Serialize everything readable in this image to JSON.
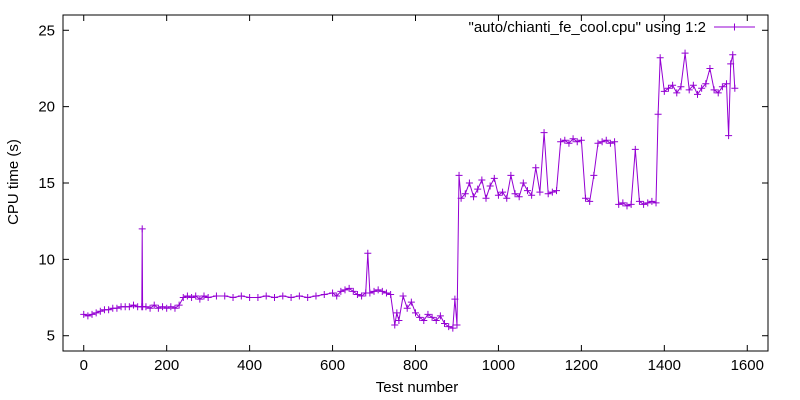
{
  "chart_data": {
    "type": "line",
    "xlabel": "Test number",
    "ylabel": "CPU time (s)",
    "xlim": [
      -50,
      1650
    ],
    "ylim": [
      4,
      26
    ],
    "xticks": [
      0,
      200,
      400,
      600,
      800,
      1000,
      1200,
      1400,
      1600
    ],
    "yticks": [
      5,
      10,
      15,
      20,
      25
    ],
    "grid": false,
    "legend_position": "top-right",
    "marker": "+",
    "series": [
      {
        "name": "\"auto/chianti_fe_cool.cpu\" using 1:2",
        "color": "#9400d3",
        "x": [
          0,
          10,
          20,
          30,
          40,
          50,
          60,
          70,
          80,
          90,
          100,
          110,
          120,
          130,
          140,
          141,
          142,
          150,
          160,
          170,
          180,
          190,
          200,
          210,
          220,
          230,
          240,
          250,
          260,
          270,
          280,
          290,
          300,
          320,
          340,
          360,
          380,
          400,
          420,
          440,
          460,
          480,
          500,
          520,
          540,
          560,
          580,
          600,
          610,
          620,
          630,
          640,
          650,
          660,
          670,
          680,
          685,
          690,
          700,
          710,
          720,
          730,
          740,
          750,
          755,
          760,
          770,
          780,
          790,
          800,
          810,
          820,
          830,
          840,
          850,
          860,
          870,
          880,
          890,
          895,
          900,
          905,
          910,
          920,
          930,
          940,
          950,
          960,
          970,
          980,
          990,
          1000,
          1010,
          1020,
          1030,
          1040,
          1050,
          1060,
          1070,
          1080,
          1090,
          1100,
          1110,
          1120,
          1130,
          1140,
          1150,
          1160,
          1170,
          1180,
          1190,
          1200,
          1210,
          1220,
          1230,
          1240,
          1250,
          1260,
          1270,
          1280,
          1290,
          1300,
          1310,
          1320,
          1330,
          1340,
          1350,
          1360,
          1370,
          1380,
          1385,
          1390,
          1400,
          1410,
          1420,
          1430,
          1440,
          1450,
          1460,
          1470,
          1480,
          1490,
          1500,
          1510,
          1520,
          1530,
          1540,
          1550,
          1555,
          1560,
          1565,
          1570
        ],
        "y": [
          6.4,
          6.3,
          6.4,
          6.5,
          6.6,
          6.7,
          6.7,
          6.8,
          6.8,
          6.9,
          6.9,
          6.9,
          7.0,
          6.9,
          6.9,
          12.0,
          6.9,
          6.9,
          6.8,
          7.0,
          6.8,
          6.9,
          6.8,
          6.9,
          6.8,
          7.0,
          7.5,
          7.6,
          7.5,
          7.6,
          7.4,
          7.6,
          7.5,
          7.6,
          7.6,
          7.5,
          7.6,
          7.5,
          7.5,
          7.6,
          7.5,
          7.6,
          7.5,
          7.6,
          7.5,
          7.6,
          7.7,
          7.8,
          7.6,
          7.9,
          8.0,
          8.1,
          7.9,
          7.7,
          7.6,
          7.8,
          10.4,
          7.8,
          7.9,
          8.0,
          7.9,
          7.8,
          7.7,
          5.7,
          6.5,
          6.0,
          7.6,
          6.8,
          7.2,
          6.5,
          6.2,
          6.0,
          6.4,
          6.2,
          6.0,
          6.3,
          5.8,
          5.6,
          5.5,
          7.4,
          5.7,
          15.5,
          14.0,
          14.3,
          15.0,
          14.1,
          14.6,
          15.2,
          14.0,
          14.8,
          15.3,
          14.2,
          14.4,
          14.0,
          15.5,
          14.3,
          14.1,
          15.0,
          14.5,
          14.2,
          16.0,
          14.4,
          18.3,
          14.3,
          14.4,
          14.5,
          17.7,
          17.8,
          17.6,
          17.9,
          17.7,
          17.8,
          14.0,
          13.8,
          15.5,
          17.6,
          17.7,
          17.8,
          17.6,
          17.7,
          13.6,
          13.7,
          13.5,
          13.6,
          17.2,
          13.8,
          13.6,
          13.7,
          13.8,
          13.7,
          19.5,
          23.2,
          21.0,
          21.2,
          21.4,
          20.9,
          21.3,
          23.5,
          21.1,
          21.4,
          20.8,
          21.2,
          21.5,
          22.5,
          21.1,
          20.9,
          21.3,
          21.5,
          18.1,
          22.8,
          23.4,
          21.2
        ]
      }
    ]
  }
}
